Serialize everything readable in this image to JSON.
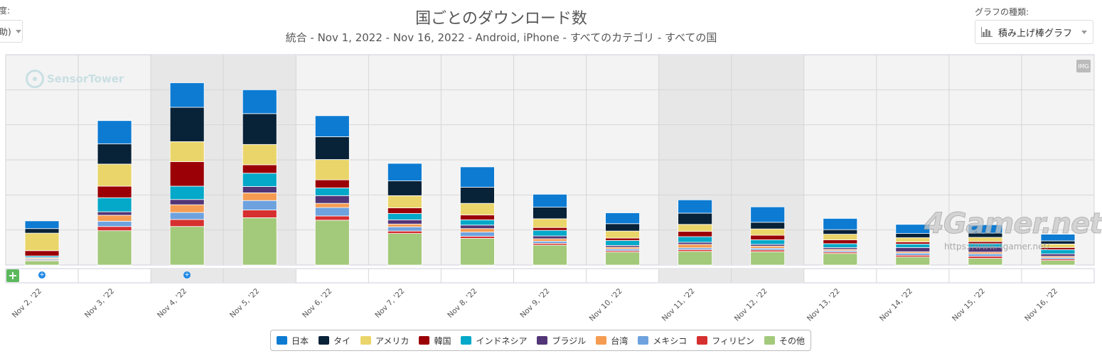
{
  "controls": {
    "left_label": "度:",
    "left_select_value": "助)",
    "type_label": "グラフの種類:",
    "type_value": "積み上げ棒グラフ",
    "img_button": "IMG",
    "add_button": "+"
  },
  "header": {
    "title": "国ごとのダウンロード数",
    "subtitle": "統合 - Nov 1, 2022 - Nov 16, 2022 - Android, iPhone - すべてのカテゴリ - すべての国"
  },
  "watermarks": {
    "sensor_tower": "SensorTower",
    "gamer": "4Gamer.net",
    "gamer_url": "https://www.4gamer.net/"
  },
  "chart_data": {
    "type": "bar",
    "stacked": true,
    "categories": [
      "Nov 2, '22",
      "Nov 3, '22",
      "Nov 4, '22",
      "Nov 5, '22",
      "Nov 6, '22",
      "Nov 7, '22",
      "Nov 8, '22",
      "Nov 9, '22",
      "Nov 10, '22",
      "Nov 11, '22",
      "Nov 12, '22",
      "Nov 13, '22",
      "Nov 14, '22",
      "Nov 15, '22",
      "Nov 16, '22"
    ],
    "ylim": [
      0,
      6
    ],
    "grid": true,
    "legend_position": "bottom",
    "highlighted_ranges": [
      [
        2,
        3
      ],
      [
        9,
        10
      ]
    ],
    "series": [
      {
        "name": "その他",
        "color": "#a3c97a",
        "values": [
          0.12,
          0.98,
          1.1,
          1.35,
          1.28,
          0.9,
          0.76,
          0.57,
          0.37,
          0.39,
          0.38,
          0.33,
          0.23,
          0.19,
          0.13
        ]
      },
      {
        "name": "フィリピン",
        "color": "#d62f2f",
        "values": [
          0.02,
          0.12,
          0.2,
          0.22,
          0.12,
          0.07,
          0.06,
          0.05,
          0.04,
          0.05,
          0.05,
          0.04,
          0.05,
          0.06,
          0.04
        ]
      },
      {
        "name": "メキシコ",
        "color": "#6ea2de",
        "values": [
          0.03,
          0.15,
          0.2,
          0.27,
          0.24,
          0.12,
          0.12,
          0.06,
          0.05,
          0.05,
          0.05,
          0.04,
          0.06,
          0.07,
          0.04
        ]
      },
      {
        "name": "台湾",
        "color": "#f59c52",
        "values": [
          0.03,
          0.17,
          0.22,
          0.22,
          0.12,
          0.08,
          0.1,
          0.07,
          0.05,
          0.1,
          0.06,
          0.04,
          0.04,
          0.05,
          0.04
        ]
      },
      {
        "name": "ブラジル",
        "color": "#523576",
        "values": [
          0.02,
          0.1,
          0.15,
          0.18,
          0.22,
          0.12,
          0.1,
          0.08,
          0.05,
          0.06,
          0.05,
          0.05,
          0.12,
          0.14,
          0.07
        ]
      },
      {
        "name": "インドネシア",
        "color": "#04a8c8",
        "values": [
          0.04,
          0.4,
          0.38,
          0.38,
          0.22,
          0.18,
          0.15,
          0.16,
          0.14,
          0.16,
          0.13,
          0.11,
          0.1,
          0.1,
          0.12
        ]
      },
      {
        "name": "韓国",
        "color": "#9b0006",
        "values": [
          0.15,
          0.33,
          0.7,
          0.24,
          0.23,
          0.16,
          0.14,
          0.08,
          0.07,
          0.15,
          0.13,
          0.11,
          0.06,
          0.06,
          0.06
        ]
      },
      {
        "name": "アメリカ",
        "color": "#ead56a",
        "values": [
          0.5,
          0.63,
          0.57,
          0.58,
          0.58,
          0.35,
          0.33,
          0.25,
          0.2,
          0.2,
          0.18,
          0.16,
          0.12,
          0.12,
          0.1
        ]
      },
      {
        "name": "タイ",
        "color": "#082238",
        "values": [
          0.13,
          0.58,
          0.98,
          0.88,
          0.65,
          0.42,
          0.46,
          0.33,
          0.21,
          0.32,
          0.19,
          0.13,
          0.12,
          0.12,
          0.09
        ]
      },
      {
        "name": "日本",
        "color": "#0d7bd2",
        "values": [
          0.22,
          0.66,
          0.7,
          0.68,
          0.6,
          0.5,
          0.58,
          0.37,
          0.31,
          0.38,
          0.44,
          0.32,
          0.26,
          0.24,
          0.19
        ]
      }
    ]
  }
}
